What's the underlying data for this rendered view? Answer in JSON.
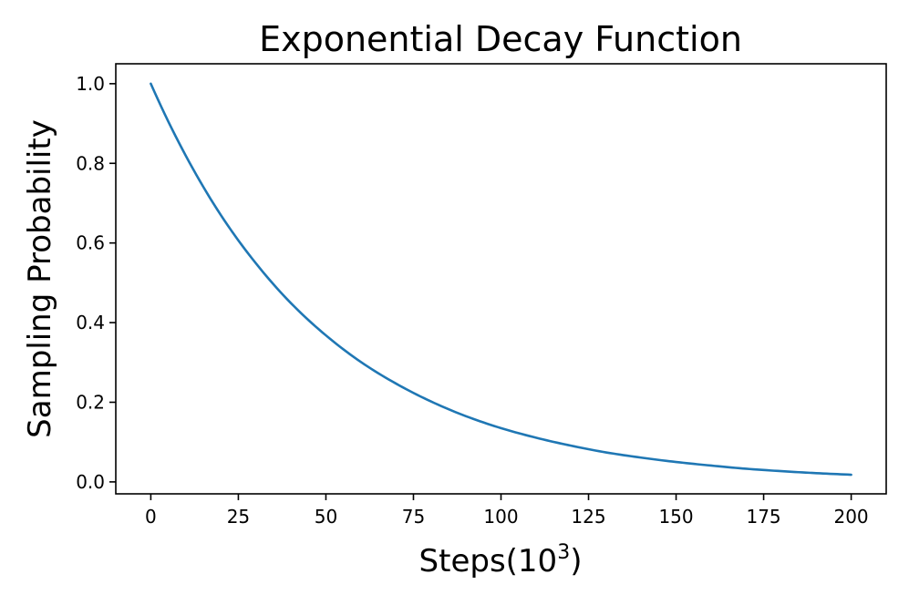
{
  "chart_data": {
    "type": "line",
    "title": "Exponential Decay Function",
    "xlabel_main": "Steps(10",
    "xlabel_sup": "3",
    "xlabel_close": ")",
    "ylabel": "Sampling Probability",
    "xlim": [
      -10,
      210
    ],
    "ylim": [
      -0.03,
      1.05
    ],
    "x_ticks": [
      0,
      25,
      50,
      75,
      100,
      125,
      150,
      175,
      200
    ],
    "x_tick_labels": [
      "0",
      "25",
      "50",
      "75",
      "100",
      "125",
      "150",
      "175",
      "200"
    ],
    "y_ticks": [
      0.0,
      0.2,
      0.4,
      0.6,
      0.8,
      1.0
    ],
    "y_tick_labels": [
      "0.0",
      "0.2",
      "0.4",
      "0.6",
      "0.8",
      "1.0"
    ],
    "grid": false,
    "series": [
      {
        "color": "#1f77b4",
        "x": [
          0,
          10,
          20,
          30,
          40,
          50,
          60,
          70,
          80,
          90,
          100,
          110,
          120,
          130,
          140,
          150,
          160,
          170,
          180,
          190,
          200
        ],
        "y": [
          1.0,
          0.819,
          0.67,
          0.549,
          0.449,
          0.368,
          0.301,
          0.247,
          0.202,
          0.165,
          0.135,
          0.111,
          0.091,
          0.074,
          0.061,
          0.05,
          0.041,
          0.033,
          0.027,
          0.022,
          0.018
        ]
      }
    ]
  }
}
